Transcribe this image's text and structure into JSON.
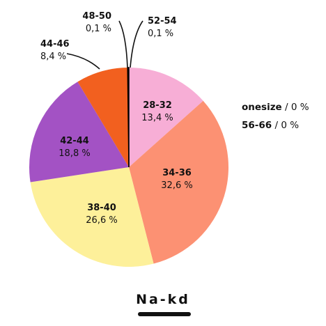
{
  "chart_data": {
    "type": "pie",
    "title": "Na-kd",
    "categories": [
      "28-32",
      "34-36",
      "38-40",
      "42-44",
      "44-46",
      "48-50",
      "52-54",
      "onesize",
      "56-66"
    ],
    "values": [
      13.4,
      32.6,
      26.6,
      18.8,
      8.4,
      0.1,
      0.1,
      0,
      0
    ],
    "value_labels": [
      "13,4 %",
      "32,6 %",
      "26,6 %",
      "18,8 %",
      "8,4 %",
      "0,1 %",
      "0,1 %",
      "0 %",
      "0 %"
    ],
    "colors": [
      "#f7aed6",
      "#fc9173",
      "#fdf09a",
      "#a352c4",
      "#f2601f",
      "#000000",
      "#000000",
      "#ffffff",
      "#ffffff"
    ],
    "slice_order": [
      "28-32",
      "34-36",
      "38-40",
      "42-44",
      "44-46",
      "48-50",
      "52-54"
    ],
    "legend_position": "right",
    "side_entries": [
      {
        "category": "onesize",
        "separator": " / ",
        "value": "0 %"
      },
      {
        "category": "56-66",
        "separator": " / ",
        "value": "0 %"
      }
    ]
  }
}
